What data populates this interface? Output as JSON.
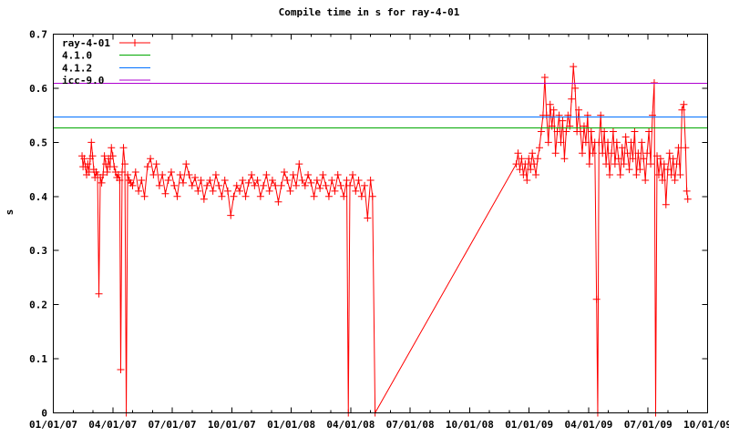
{
  "chart_data": {
    "type": "line",
    "title": "Compile time in s for ray-4-01",
    "ylabel": "s",
    "xlabel": "",
    "grid": false,
    "legend_position": "top-left-inside",
    "x_unit": "months since 2007-01-01",
    "x_range_months": [
      0,
      33
    ],
    "x_tick_months": [
      0,
      3,
      6,
      9,
      12,
      15,
      18,
      21,
      24,
      27,
      30,
      33
    ],
    "x_tick_labels": [
      "01/01/07",
      "04/01/07",
      "07/01/07",
      "10/01/07",
      "01/01/08",
      "04/01/08",
      "07/01/08",
      "10/01/08",
      "01/01/09",
      "04/01/09",
      "07/01/09",
      "10/01/09"
    ],
    "x_minor_tick_every_months": 1,
    "y_range": [
      0,
      0.7
    ],
    "y_tick_values": [
      0,
      0.1,
      0.2,
      0.3,
      0.4,
      0.5,
      0.6,
      0.7
    ],
    "y_tick_labels": [
      "0",
      "0.1",
      "0.2",
      "0.3",
      "0.4",
      "0.5",
      "0.6",
      "0.7"
    ],
    "series": [
      {
        "name": "ray-4-01",
        "color": "#ff0000",
        "kind": "line-points",
        "marker": "plus",
        "points": [
          [
            1.45,
            0.475
          ],
          [
            1.5,
            0.455
          ],
          [
            1.56,
            0.47
          ],
          [
            1.62,
            0.455
          ],
          [
            1.68,
            0.44
          ],
          [
            1.74,
            0.46
          ],
          [
            1.8,
            0.445
          ],
          [
            1.86,
            0.47
          ],
          [
            1.92,
            0.5
          ],
          [
            1.98,
            0.475
          ],
          [
            2.04,
            0.45
          ],
          [
            2.1,
            0.435
          ],
          [
            2.16,
            0.445
          ],
          [
            2.23,
            0.44
          ],
          [
            2.3,
            0.22
          ],
          [
            2.37,
            0.435
          ],
          [
            2.44,
            0.425
          ],
          [
            2.51,
            0.44
          ],
          [
            2.58,
            0.475
          ],
          [
            2.65,
            0.46
          ],
          [
            2.72,
            0.445
          ],
          [
            2.79,
            0.47
          ],
          [
            2.86,
            0.455
          ],
          [
            2.93,
            0.49
          ],
          [
            3.0,
            0.475
          ],
          [
            3.07,
            0.455
          ],
          [
            3.14,
            0.445
          ],
          [
            3.21,
            0.435
          ],
          [
            3.28,
            0.44
          ],
          [
            3.35,
            0.43
          ],
          [
            3.4,
            0.08
          ],
          [
            3.47,
            0.445
          ],
          [
            3.54,
            0.49
          ],
          [
            3.61,
            0.46
          ],
          [
            3.68,
            0.0
          ],
          [
            3.75,
            0.44
          ],
          [
            3.83,
            0.43
          ],
          [
            3.91,
            0.425
          ],
          [
            4.0,
            0.42
          ],
          [
            4.15,
            0.445
          ],
          [
            4.3,
            0.41
          ],
          [
            4.45,
            0.43
          ],
          [
            4.6,
            0.4
          ],
          [
            4.75,
            0.455
          ],
          [
            4.9,
            0.47
          ],
          [
            5.05,
            0.44
          ],
          [
            5.2,
            0.46
          ],
          [
            5.35,
            0.42
          ],
          [
            5.5,
            0.44
          ],
          [
            5.65,
            0.405
          ],
          [
            5.8,
            0.43
          ],
          [
            5.95,
            0.445
          ],
          [
            6.1,
            0.42
          ],
          [
            6.25,
            0.4
          ],
          [
            6.4,
            0.44
          ],
          [
            6.55,
            0.425
          ],
          [
            6.7,
            0.46
          ],
          [
            6.85,
            0.44
          ],
          [
            7.0,
            0.42
          ],
          [
            7.15,
            0.435
          ],
          [
            7.3,
            0.41
          ],
          [
            7.45,
            0.43
          ],
          [
            7.6,
            0.395
          ],
          [
            7.75,
            0.42
          ],
          [
            7.9,
            0.43
          ],
          [
            8.05,
            0.41
          ],
          [
            8.2,
            0.44
          ],
          [
            8.35,
            0.42
          ],
          [
            8.5,
            0.4
          ],
          [
            8.65,
            0.43
          ],
          [
            8.8,
            0.41
          ],
          [
            8.95,
            0.365
          ],
          [
            9.1,
            0.4
          ],
          [
            9.25,
            0.42
          ],
          [
            9.4,
            0.41
          ],
          [
            9.55,
            0.43
          ],
          [
            9.7,
            0.4
          ],
          [
            9.85,
            0.425
          ],
          [
            10.0,
            0.44
          ],
          [
            10.15,
            0.42
          ],
          [
            10.3,
            0.43
          ],
          [
            10.45,
            0.4
          ],
          [
            10.6,
            0.42
          ],
          [
            10.75,
            0.44
          ],
          [
            10.9,
            0.41
          ],
          [
            11.05,
            0.43
          ],
          [
            11.2,
            0.42
          ],
          [
            11.35,
            0.39
          ],
          [
            11.5,
            0.42
          ],
          [
            11.65,
            0.445
          ],
          [
            11.8,
            0.43
          ],
          [
            11.95,
            0.41
          ],
          [
            12.1,
            0.44
          ],
          [
            12.25,
            0.42
          ],
          [
            12.4,
            0.46
          ],
          [
            12.55,
            0.43
          ],
          [
            12.7,
            0.42
          ],
          [
            12.85,
            0.44
          ],
          [
            13.0,
            0.425
          ],
          [
            13.15,
            0.4
          ],
          [
            13.3,
            0.43
          ],
          [
            13.45,
            0.415
          ],
          [
            13.6,
            0.44
          ],
          [
            13.75,
            0.42
          ],
          [
            13.9,
            0.4
          ],
          [
            14.05,
            0.43
          ],
          [
            14.2,
            0.41
          ],
          [
            14.35,
            0.44
          ],
          [
            14.5,
            0.42
          ],
          [
            14.65,
            0.4
          ],
          [
            14.8,
            0.43
          ],
          [
            14.88,
            0.0
          ],
          [
            14.96,
            0.42
          ],
          [
            15.1,
            0.44
          ],
          [
            15.25,
            0.41
          ],
          [
            15.4,
            0.43
          ],
          [
            15.55,
            0.4
          ],
          [
            15.7,
            0.42
          ],
          [
            15.85,
            0.36
          ],
          [
            16.0,
            0.43
          ],
          [
            16.1,
            0.4
          ],
          [
            16.23,
            0.0
          ],
          [
            23.35,
            0.46
          ],
          [
            23.44,
            0.48
          ],
          [
            23.53,
            0.45
          ],
          [
            23.62,
            0.47
          ],
          [
            23.71,
            0.44
          ],
          [
            23.8,
            0.46
          ],
          [
            23.89,
            0.43
          ],
          [
            23.98,
            0.47
          ],
          [
            24.07,
            0.45
          ],
          [
            24.16,
            0.48
          ],
          [
            24.25,
            0.46
          ],
          [
            24.34,
            0.44
          ],
          [
            24.43,
            0.47
          ],
          [
            24.52,
            0.49
          ],
          [
            24.61,
            0.52
          ],
          [
            24.7,
            0.55
          ],
          [
            24.79,
            0.62
          ],
          [
            24.88,
            0.55
          ],
          [
            24.97,
            0.5
          ],
          [
            25.06,
            0.57
          ],
          [
            25.15,
            0.53
          ],
          [
            25.24,
            0.56
          ],
          [
            25.33,
            0.48
          ],
          [
            25.42,
            0.52
          ],
          [
            25.51,
            0.55
          ],
          [
            25.6,
            0.5
          ],
          [
            25.69,
            0.54
          ],
          [
            25.78,
            0.47
          ],
          [
            25.87,
            0.52
          ],
          [
            25.96,
            0.55
          ],
          [
            26.05,
            0.53
          ],
          [
            26.14,
            0.58
          ],
          [
            26.23,
            0.64
          ],
          [
            26.32,
            0.6
          ],
          [
            26.41,
            0.52
          ],
          [
            26.5,
            0.56
          ],
          [
            26.59,
            0.52
          ],
          [
            26.68,
            0.48
          ],
          [
            26.77,
            0.53
          ],
          [
            26.86,
            0.5
          ],
          [
            26.95,
            0.55
          ],
          [
            27.04,
            0.46
          ],
          [
            27.13,
            0.52
          ],
          [
            27.22,
            0.48
          ],
          [
            27.31,
            0.5
          ],
          [
            27.4,
            0.21
          ],
          [
            27.46,
            0.0
          ],
          [
            27.52,
            0.5
          ],
          [
            27.61,
            0.55
          ],
          [
            27.7,
            0.48
          ],
          [
            27.79,
            0.52
          ],
          [
            27.88,
            0.46
          ],
          [
            27.97,
            0.5
          ],
          [
            28.06,
            0.44
          ],
          [
            28.15,
            0.48
          ],
          [
            28.24,
            0.52
          ],
          [
            28.33,
            0.46
          ],
          [
            28.42,
            0.5
          ],
          [
            28.51,
            0.47
          ],
          [
            28.6,
            0.44
          ],
          [
            28.69,
            0.49
          ],
          [
            28.78,
            0.46
          ],
          [
            28.87,
            0.51
          ],
          [
            28.96,
            0.48
          ],
          [
            29.05,
            0.45
          ],
          [
            29.14,
            0.5
          ],
          [
            29.23,
            0.47
          ],
          [
            29.32,
            0.52
          ],
          [
            29.41,
            0.44
          ],
          [
            29.5,
            0.48
          ],
          [
            29.59,
            0.45
          ],
          [
            29.68,
            0.5
          ],
          [
            29.77,
            0.47
          ],
          [
            29.86,
            0.43
          ],
          [
            29.95,
            0.48
          ],
          [
            30.04,
            0.52
          ],
          [
            30.13,
            0.46
          ],
          [
            30.22,
            0.55
          ],
          [
            30.31,
            0.61
          ],
          [
            30.38,
            0.0
          ],
          [
            30.45,
            0.475
          ],
          [
            30.54,
            0.44
          ],
          [
            30.63,
            0.47
          ],
          [
            30.72,
            0.43
          ],
          [
            30.81,
            0.46
          ],
          [
            30.9,
            0.385
          ],
          [
            30.99,
            0.45
          ],
          [
            31.08,
            0.48
          ],
          [
            31.17,
            0.44
          ],
          [
            31.26,
            0.47
          ],
          [
            31.35,
            0.43
          ],
          [
            31.44,
            0.46
          ],
          [
            31.53,
            0.49
          ],
          [
            31.62,
            0.44
          ],
          [
            31.71,
            0.56
          ],
          [
            31.8,
            0.57
          ],
          [
            31.89,
            0.49
          ],
          [
            31.95,
            0.41
          ],
          [
            32.0,
            0.395
          ]
        ]
      },
      {
        "name": "4.1.0",
        "color": "#00a800",
        "kind": "hline",
        "value": 0.527
      },
      {
        "name": "4.1.2",
        "color": "#0070ff",
        "kind": "hline",
        "value": 0.547
      },
      {
        "name": "icc-9.0",
        "color": "#ae00d0",
        "kind": "hline",
        "value": 0.609
      }
    ],
    "axis_color": "#000000"
  }
}
